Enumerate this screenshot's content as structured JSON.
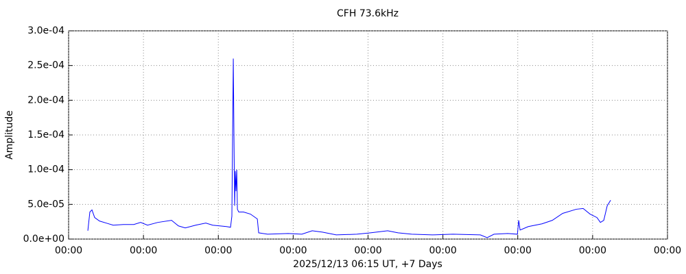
{
  "chart_data": {
    "type": "line",
    "title": "CFH 73.6kHz",
    "x_label": "2025/12/13 06:15 UT, +7 Days",
    "y_label": "Amplitude",
    "x": [
      0.257,
      0.284,
      0.312,
      0.348,
      0.412,
      0.504,
      0.596,
      0.733,
      0.871,
      0.962,
      1.054,
      1.192,
      1.375,
      1.467,
      1.558,
      1.696,
      1.833,
      1.925,
      2.017,
      2.108,
      2.163,
      2.181,
      2.2,
      2.209,
      2.218,
      2.227,
      2.236,
      2.246,
      2.255,
      2.273,
      2.337,
      2.429,
      2.521,
      2.539,
      2.658,
      2.933,
      3.116,
      3.254,
      3.391,
      3.575,
      3.85,
      4.033,
      4.262,
      4.4,
      4.583,
      4.858,
      5.133,
      5.5,
      5.591,
      5.683,
      5.866,
      5.995,
      6.013,
      6.031,
      6.141,
      6.324,
      6.462,
      6.6,
      6.783,
      6.874,
      6.966,
      7.058,
      7.104,
      7.149,
      7.195,
      7.241
    ],
    "series": [
      {
        "name": "CFH 73.6kHz",
        "color": "#0000ff",
        "values": [
          1.2e-05,
          3.9e-05,
          4.2e-05,
          3.1e-05,
          2.6e-05,
          2.3e-05,
          2e-05,
          2.1e-05,
          2.1e-05,
          2.4e-05,
          2e-05,
          2.4e-05,
          2.7e-05,
          1.9e-05,
          1.6e-05,
          2e-05,
          2.3e-05,
          2e-05,
          1.9e-05,
          1.8e-05,
          1.7e-05,
          3.3e-05,
          0.00026,
          0.000147,
          4.8e-05,
          9.8e-05,
          6.9e-05,
          0.0001,
          4.3e-05,
          3.9e-05,
          3.9e-05,
          3.6e-05,
          2.9e-05,
          9e-06,
          7e-06,
          8e-06,
          7e-06,
          1.2e-05,
          1e-05,
          6e-06,
          7e-06,
          9e-06,
          1.2e-05,
          9e-06,
          7e-06,
          6e-06,
          7e-06,
          6e-06,
          2e-06,
          7e-06,
          8e-06,
          7e-06,
          2.7e-05,
          1.3e-05,
          1.8e-05,
          2.2e-05,
          2.7e-05,
          3.7e-05,
          4.3e-05,
          4.4e-05,
          3.6e-05,
          3.1e-05,
          2.4e-05,
          2.7e-05,
          4.8e-05,
          5.6e-05
        ]
      }
    ],
    "xlim": [
      0,
      8
    ],
    "xticks": [
      {
        "value": 0,
        "label": "00:00"
      },
      {
        "value": 1,
        "label": "00:00"
      },
      {
        "value": 2,
        "label": "00:00"
      },
      {
        "value": 3,
        "label": "00:00"
      },
      {
        "value": 4,
        "label": "00:00"
      },
      {
        "value": 5,
        "label": "00:00"
      },
      {
        "value": 6,
        "label": "00:00"
      },
      {
        "value": 7,
        "label": "00:00"
      },
      {
        "value": 8,
        "label": "00:00"
      }
    ],
    "ylim": [
      0,
      0.0003
    ],
    "yticks": [
      {
        "value": 0,
        "label": "0.0e+00"
      },
      {
        "value": 5e-05,
        "label": "5.0e-05"
      },
      {
        "value": 0.0001,
        "label": "1.0e-04"
      },
      {
        "value": 0.00015,
        "label": "1.5e-04"
      },
      {
        "value": 0.0002,
        "label": "2.0e-04"
      },
      {
        "value": 0.00025,
        "label": "2.5e-04"
      },
      {
        "value": 0.0003,
        "label": "3.0e-04"
      }
    ],
    "grid": true
  }
}
